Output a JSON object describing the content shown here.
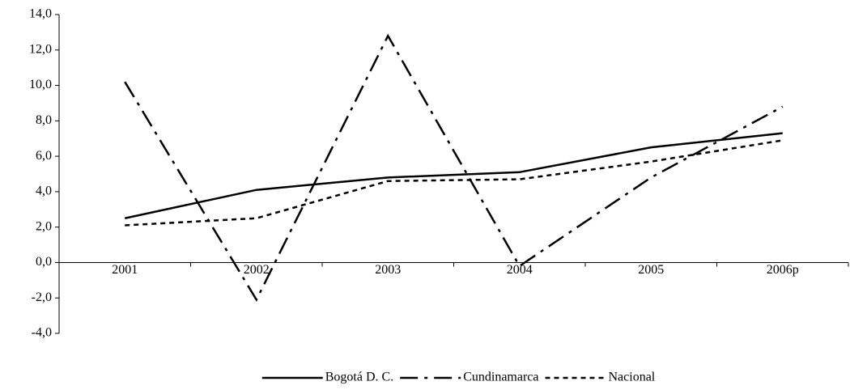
{
  "chart_data": {
    "type": "line",
    "categories": [
      "2001",
      "2002",
      "2003",
      "2004",
      "2005",
      "2006p"
    ],
    "series": [
      {
        "name": "Bogotá D. C.",
        "color": "#000000",
        "dash": "solid",
        "values": [
          2.5,
          4.1,
          4.8,
          5.1,
          6.5,
          7.3
        ]
      },
      {
        "name": "Cundinamarca",
        "color": "#000000",
        "dash": "dashdot",
        "values": [
          10.2,
          -2.1,
          12.8,
          -0.2,
          4.8,
          8.8
        ]
      },
      {
        "name": "Nacional",
        "color": "#000000",
        "dash": "dotted",
        "values": [
          2.1,
          2.5,
          4.6,
          4.7,
          5.7,
          6.9
        ]
      }
    ],
    "ylim": [
      -4,
      14
    ],
    "yticks": [
      {
        "value": -4,
        "label": "-4,0"
      },
      {
        "value": -2,
        "label": "-2,0"
      },
      {
        "value": 0,
        "label": "0,0"
      },
      {
        "value": 2,
        "label": "2,0"
      },
      {
        "value": 4,
        "label": "4,0"
      },
      {
        "value": 6,
        "label": "6,0"
      },
      {
        "value": 8,
        "label": "8,0"
      },
      {
        "value": 10,
        "label": "10,0"
      },
      {
        "value": 12,
        "label": "12,0"
      },
      {
        "value": 14,
        "label": "14,0"
      }
    ],
    "grid": false,
    "legend": "bottom"
  }
}
